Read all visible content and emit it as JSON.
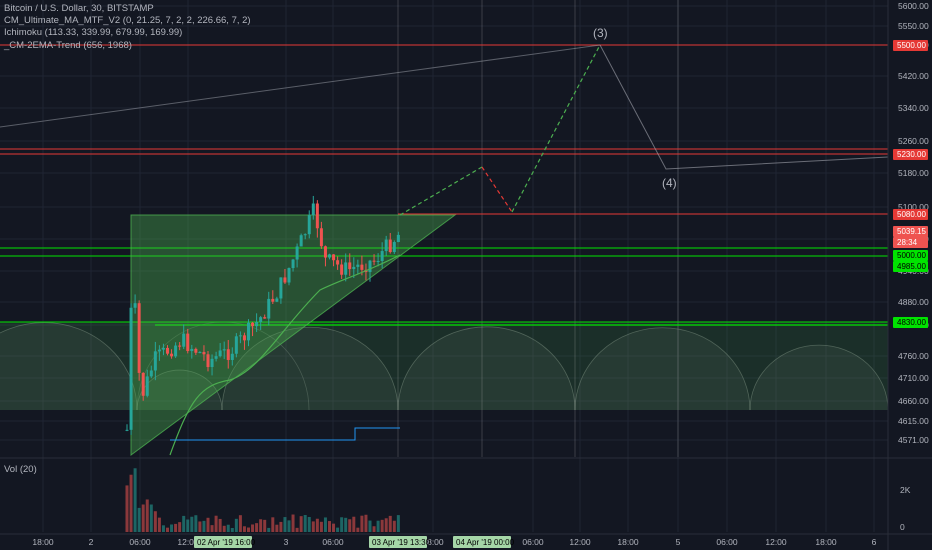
{
  "legend": {
    "symbol": "Bitcoin / U.S. Dollar, 30, BITSTAMP",
    "ind1": "CM_Ultimate_MA_MTF_V2 (0, 21.25, 7, 2, 2, 226.66, 7, 2)",
    "ind2": "Ichimoku (113.33, 339.99, 679.99, 169.99)",
    "ind3": "_CM-2EMA-Trend (656, 1968)"
  },
  "volume_label": "Vol (20)",
  "colors": {
    "up": "#26a69a",
    "down": "#ef5350",
    "bg": "#131722",
    "green_line": "#00e400",
    "red_line": "#e53935"
  },
  "chart_data": {
    "type": "candlestick",
    "y_axis_ticks": [
      "5600.00",
      "5550.00",
      "5500.00",
      "5420.00",
      "5340.00",
      "5260.00",
      "5180.00",
      "5100.00",
      "5020.00",
      "4940.00",
      "4880.00",
      "4820.00",
      "4760.00",
      "4710.00",
      "4660.00",
      "4615.00",
      "4571.00"
    ],
    "x_axis_ticks": [
      "18:00",
      "2",
      "06:00",
      "12:00",
      "3",
      "06:00",
      "18:00",
      "06:00",
      "12:00",
      "18:00",
      "5",
      "06:00",
      "12:00",
      "18:00",
      "6"
    ],
    "x_axis_highlights": [
      "02 Apr '19 16:00",
      "03 Apr '19 13:30",
      "04 Apr '19 00:00"
    ],
    "price_tags": [
      {
        "label": "5500.00",
        "color": "#e53935"
      },
      {
        "label": "5230.00",
        "color": "#e53935"
      },
      {
        "label": "5080.00",
        "color": "#e53935"
      },
      {
        "label": "5039.15",
        "color": "#ef5350"
      },
      {
        "label": "28:34",
        "color": "#ef5350"
      },
      {
        "label": "5000.00",
        "color": "#00e400"
      },
      {
        "label": "4985.00",
        "color": "#00e400"
      },
      {
        "label": "4830.00",
        "color": "#00e400"
      }
    ],
    "wave_labels": [
      "(3)",
      "(4)"
    ],
    "volume_ticks": [
      "2K",
      "0"
    ]
  }
}
